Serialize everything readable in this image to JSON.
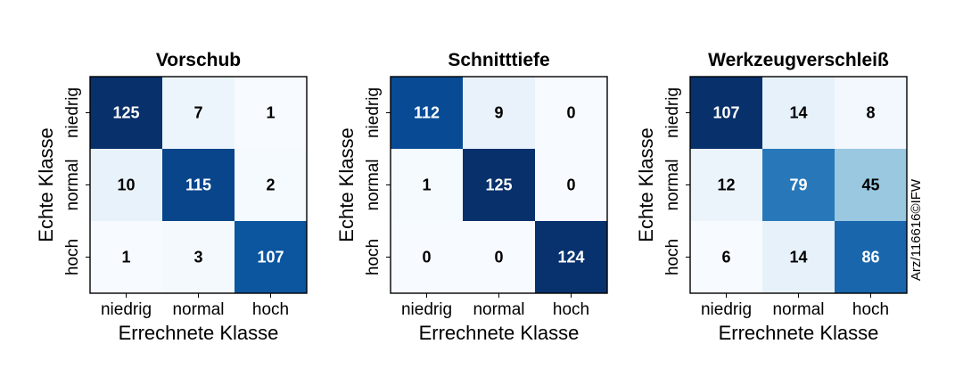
{
  "chart_data": [
    {
      "type": "heatmap",
      "title": "Vorschub",
      "xlabel": "Errechnete Klasse",
      "ylabel": "Echte Klasse",
      "x_categories": [
        "niedrig",
        "normal",
        "hoch"
      ],
      "y_categories": [
        "niedrig",
        "normal",
        "hoch"
      ],
      "values": [
        [
          125,
          7,
          1
        ],
        [
          10,
          115,
          2
        ],
        [
          1,
          3,
          107
        ]
      ]
    },
    {
      "type": "heatmap",
      "title": "Schnitttiefe",
      "xlabel": "Errechnete Klasse",
      "ylabel": "Echte Klasse",
      "x_categories": [
        "niedrig",
        "normal",
        "hoch"
      ],
      "y_categories": [
        "niedrig",
        "normal",
        "hoch"
      ],
      "values": [
        [
          112,
          9,
          0
        ],
        [
          1,
          125,
          0
        ],
        [
          0,
          0,
          124
        ]
      ]
    },
    {
      "type": "heatmap",
      "title": "Werkzeugverschleiß",
      "xlabel": "Errechnete Klasse",
      "ylabel": "Echte Klasse",
      "x_categories": [
        "niedrig",
        "normal",
        "hoch"
      ],
      "y_categories": [
        "niedrig",
        "normal",
        "hoch"
      ],
      "values": [
        [
          107,
          14,
          8
        ],
        [
          12,
          79,
          45
        ],
        [
          6,
          14,
          86
        ]
      ]
    }
  ],
  "colormap": {
    "name": "Blues",
    "low": "#f7fbff",
    "high": "#08306b"
  },
  "credit": "Arz/116616©IFW"
}
